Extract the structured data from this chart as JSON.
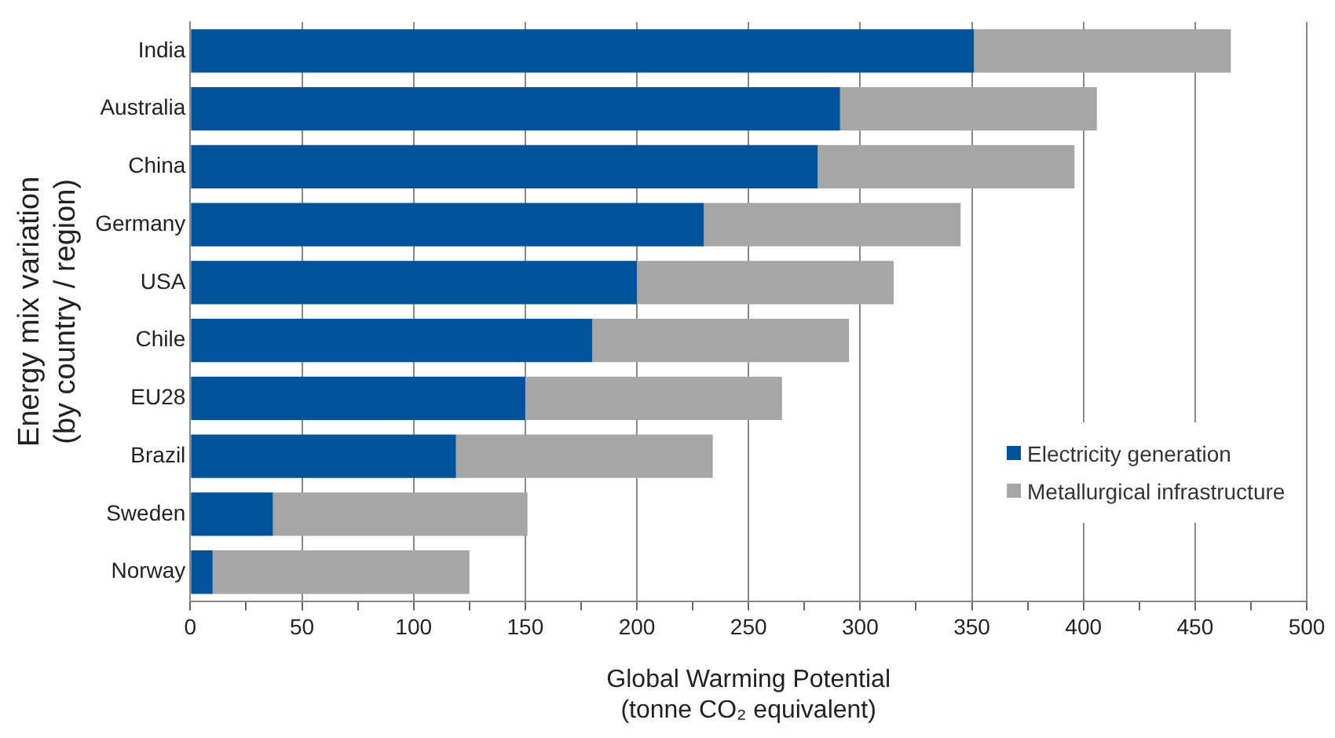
{
  "chart_data": {
    "type": "bar",
    "orientation": "horizontal",
    "stacked": true,
    "categories": [
      "India",
      "Australia",
      "China",
      "Germany",
      "USA",
      "Chile",
      "EU28",
      "Brazil",
      "Sweden",
      "Norway"
    ],
    "series": [
      {
        "name": "Electricity generation",
        "color": "#00529b",
        "values": [
          351,
          291,
          281,
          230,
          200,
          180,
          150,
          119,
          37,
          10
        ]
      },
      {
        "name": "Metallurgical infrastructure",
        "color": "#a6a6a6",
        "values": [
          115,
          115,
          115,
          115,
          115,
          115,
          115,
          115,
          114,
          115
        ]
      }
    ],
    "xlabel": "Global Warming Potential\n(tonne CO₂ equivalent)",
    "ylabel": "Energy mix variation\n(by country / region)",
    "xlim": [
      0,
      500
    ],
    "xticks": [
      0,
      {
        "value": 25,
        "label": null
      },
      50,
      {
        "value": 75,
        "label": null
      },
      100,
      {
        "value": 125,
        "label": null
      },
      150,
      {
        "value": 175,
        "label": null
      },
      200,
      {
        "value": 225,
        "label": null
      },
      250,
      {
        "value": 275,
        "label": null
      },
      300,
      {
        "value": 325,
        "label": null
      },
      350,
      {
        "value": 375,
        "label": null
      },
      400,
      {
        "value": 425,
        "label": null
      },
      450,
      {
        "value": 475,
        "label": null
      },
      500
    ],
    "grid": "x",
    "legend": "bottom right"
  }
}
